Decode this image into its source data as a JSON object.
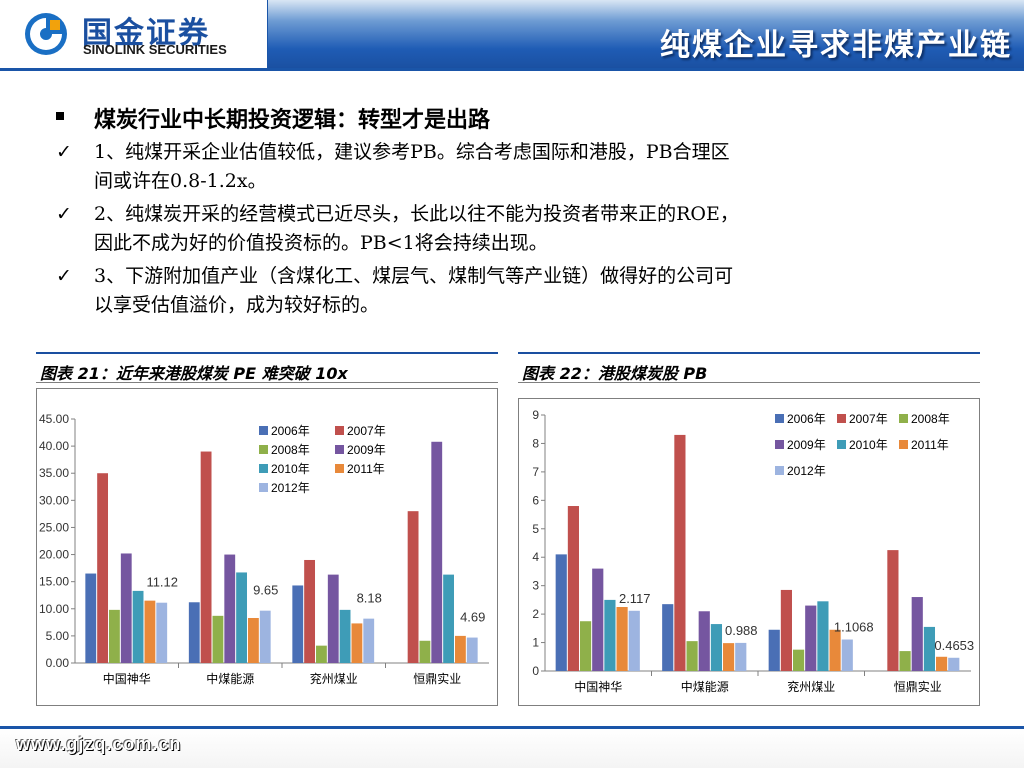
{
  "header": {
    "logo_cn": "国金证券",
    "logo_en": "SINOLINK SECURITIES",
    "title": "纯煤企业寻求非煤产业链"
  },
  "bullets": {
    "heading": "煤炭行业中长期投资逻辑：转型才是出路",
    "items": [
      {
        "lines": [
          "1、纯煤开采企业估值较低，建议参考PB。综合考虑国际和港股，PB合理区",
          "间或许在0.8-1.2x。"
        ]
      },
      {
        "lines": [
          "2、纯煤炭开采的经营模式已近尽头，长此以往不能为投资者带来正的ROE，",
          "因此不成为好的价值投资标的。PB<1将会持续出现。"
        ]
      },
      {
        "lines": [
          "3、下游附加值产业（含煤化工、煤层气、煤制气等产业链）做得好的公司可",
          "以享受估值溢价，成为较好标的。"
        ]
      }
    ]
  },
  "footer": {
    "url": "www.gjzq.com.cn"
  },
  "colors": [
    "#4a6fb5",
    "#c0504d",
    "#8fb04a",
    "#7556a0",
    "#3e9cb7",
    "#e8893a",
    "#9db4e0"
  ],
  "chart_data": [
    {
      "panel_title": "图表 21：近年来港股煤炭 PE 难突破 10x",
      "type": "bar",
      "categories": [
        "中国神华",
        "中煤能源",
        "兖州煤业",
        "恒鼎实业"
      ],
      "series": [
        {
          "name": "2006年",
          "values": [
            16.5,
            11.2,
            14.3,
            null
          ]
        },
        {
          "name": "2007年",
          "values": [
            35.0,
            39.0,
            19.0,
            28.0
          ]
        },
        {
          "name": "2008年",
          "values": [
            9.8,
            8.7,
            3.2,
            4.1
          ]
        },
        {
          "name": "2009年",
          "values": [
            20.2,
            20.0,
            16.3,
            40.8
          ]
        },
        {
          "name": "2010年",
          "values": [
            13.3,
            16.7,
            9.8,
            16.3
          ]
        },
        {
          "name": "2011年",
          "values": [
            11.5,
            8.3,
            7.3,
            5.0
          ]
        },
        {
          "name": "2012年",
          "values": [
            11.12,
            9.65,
            8.18,
            4.69
          ]
        }
      ],
      "data_labels": [
        "11.12",
        "9.65",
        "8.18",
        "4.69"
      ],
      "yticks": [
        "0.00",
        "5.00",
        "10.00",
        "15.00",
        "20.00",
        "25.00",
        "30.00",
        "35.00",
        "40.00",
        "45.00"
      ],
      "ylim": [
        0,
        45
      ],
      "legend": "top-right",
      "grid": false
    },
    {
      "panel_title": "图表 22：港股煤炭股 PB",
      "type": "bar",
      "categories": [
        "中国神华",
        "中煤能源",
        "兖州煤业",
        "恒鼎实业"
      ],
      "series": [
        {
          "name": "2006年",
          "values": [
            4.1,
            2.35,
            1.45,
            null
          ]
        },
        {
          "name": "2007年",
          "values": [
            5.8,
            8.3,
            2.85,
            4.25
          ]
        },
        {
          "name": "2008年",
          "values": [
            1.75,
            1.05,
            0.75,
            0.7
          ]
        },
        {
          "name": "2009年",
          "values": [
            3.6,
            2.1,
            2.3,
            2.6
          ]
        },
        {
          "name": "2010年",
          "values": [
            2.5,
            1.65,
            2.45,
            1.55
          ]
        },
        {
          "name": "2011年",
          "values": [
            2.25,
            0.98,
            1.45,
            0.5
          ]
        },
        {
          "name": "2012年",
          "values": [
            2.117,
            0.988,
            1.1068,
            0.4653
          ]
        }
      ],
      "data_labels": [
        "2.117",
        "0.988",
        "1.1068",
        "0.4653"
      ],
      "yticks": [
        "0",
        "1",
        "2",
        "3",
        "4",
        "5",
        "6",
        "7",
        "8",
        "9"
      ],
      "ylim": [
        0,
        9
      ],
      "legend": "top-right",
      "grid": false
    }
  ]
}
